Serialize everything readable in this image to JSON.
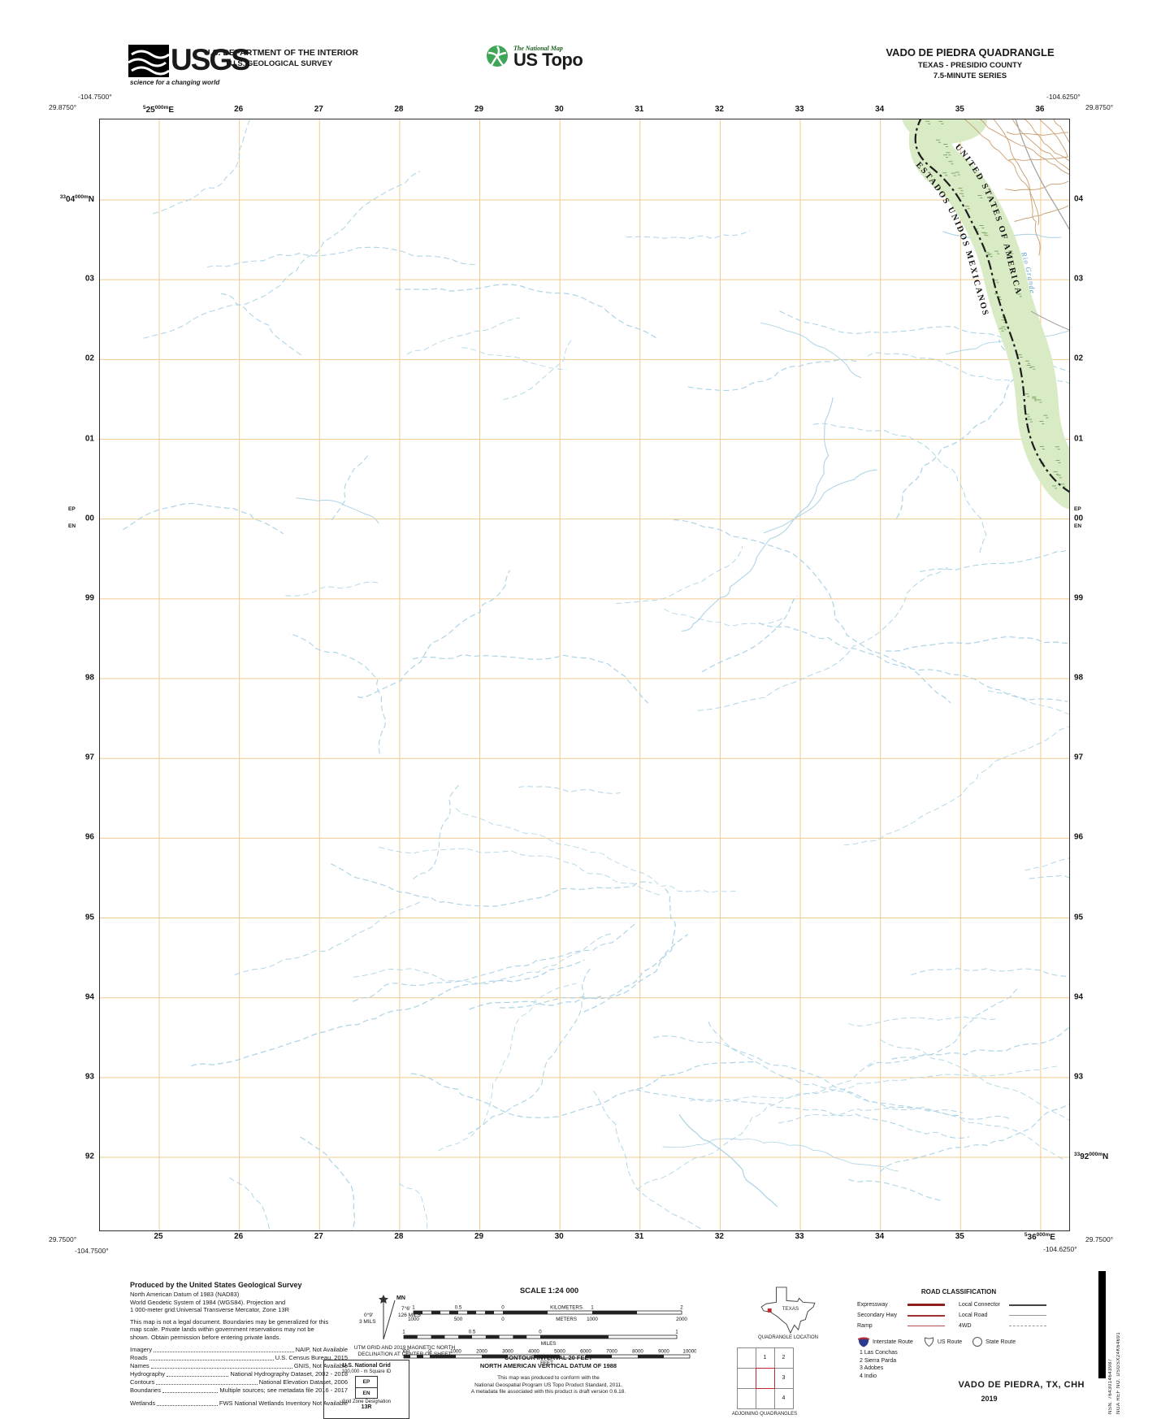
{
  "header": {
    "usgs": {
      "acronym": "USGS",
      "tagline": "science for a changing world"
    },
    "dept_line1": "U.S. DEPARTMENT OF THE INTERIOR",
    "dept_line2": "U.S. GEOLOGICAL SURVEY",
    "ustopo": {
      "brand": "The National Map",
      "product": "US Topo"
    },
    "quad": {
      "title": "VADO DE PIEDRA QUADRANGLE",
      "subtitle": "TEXAS - PRESIDIO COUNTY",
      "series": "7.5-MINUTE SERIES"
    }
  },
  "collar": {
    "corners": {
      "nw_lon": "-104.7500°",
      "nw_lat": "29.8750°",
      "ne_lon": "-104.6250°",
      "ne_lat": "29.8750°",
      "sw_lat": "29.7500°",
      "sw_lon": "-104.7500°",
      "se_lon": "-104.6250°",
      "se_lat": "29.7500°"
    },
    "grid": {
      "eastings": [
        "25",
        "26",
        "27",
        "28",
        "29",
        "30",
        "31",
        "32",
        "33",
        "34",
        "35",
        "36"
      ],
      "northings": [
        "04",
        "03",
        "02",
        "01",
        "00",
        "99",
        "98",
        "97",
        "96",
        "95",
        "94",
        "93",
        "92"
      ],
      "easting_prefix": "5",
      "northing_prefix": "33",
      "meters_suffix": "000m",
      "easting_axis": "E",
      "northing_axis": "N",
      "ep": "EP",
      "en": "EN"
    }
  },
  "map": {
    "labels": {
      "country_us": "UNITED STATES OF AMERICA",
      "country_mx": "ESTADOS UNIDOS MEXICANOS",
      "river": "Rio Grande"
    },
    "colors": {
      "grid": "#f0c98f",
      "stream": "#aed4e6",
      "vegetation": "#d8ebc4",
      "veg_marks": "#7fa968",
      "contour": "#c79e6f",
      "boundary": "#1c1c1c",
      "road": "#a5a5a5",
      "river_label": "#5b9bc8"
    }
  },
  "footer": {
    "produced": {
      "title": "Produced by the United States Geological Survey",
      "datum_lines": [
        "North American Datum of 1983 (NAD83)",
        "World Geodetic System of 1984 (WGS84).  Projection and",
        "1 000-meter grid:Universal Transverse Mercator, Zone 13R"
      ],
      "legal": "This map is not a legal document. Boundaries may be generalized for this map scale. Private lands within government reservations may not be shown. Obtain permission before entering private lands.",
      "sources": [
        {
          "label": "Imagery",
          "value": "NAIP, Not Available"
        },
        {
          "label": "Roads",
          "value": "U.S. Census Bureau, 2015"
        },
        {
          "label": "Names",
          "value": "GNIS, Not Available"
        },
        {
          "label": "Hydrography",
          "value": "National Hydrography Dataset, 2002 - 2018"
        },
        {
          "label": "Contours",
          "value": "National Elevation Dataset, 2006"
        },
        {
          "label": "Boundaries",
          "value": "Multiple sources; see metadata file 2016 - 2017"
        },
        {
          "label": "Wetlands",
          "value": "FWS National Wetlands Inventory Not Available"
        }
      ]
    },
    "declination": {
      "mn_label": "MN",
      "mn_deg": "7°6'",
      "mn_mils": "126 MILS",
      "gn_deg": "0°9'",
      "gn_mils": "3 MILS",
      "caption_line1": "UTM GRID AND 2019 MAGNETIC NORTH",
      "caption_line2": "DECLINATION AT CENTER OF SHEET"
    },
    "usng": {
      "title": "U.S. National Grid",
      "subtitle": "100,000 - m Square ID",
      "square_top": "EP",
      "square_bottom": "EN",
      "gzd_label": "Grid Zone Designation",
      "gzd_value": "13R"
    },
    "scale": {
      "title": "SCALE 1:24 000",
      "km_top": [
        "1",
        "0.5",
        "0",
        "KILOMETERS",
        "1",
        "2"
      ],
      "m_bottom": [
        "1000",
        "500",
        "0",
        "METERS",
        "1000",
        "2000"
      ],
      "mi_top": [
        "1",
        "0.5",
        "0",
        "1"
      ],
      "mi_unit": "MILES",
      "ft_top": [
        "1000",
        "0",
        "1000",
        "2000",
        "3000",
        "4000",
        "5000",
        "6000",
        "7000",
        "8000",
        "9000",
        "10000"
      ],
      "ft_unit": "FEET",
      "contour": "CONTOUR INTERVAL 20 FEET",
      "vdatum": "NORTH AMERICAN VERTICAL DATUM OF 1988",
      "notes": [
        "This map was produced to conform with the",
        "National Geospatial Program US Topo Product Standard, 2011.",
        "A metadata file associated with this product is draft version 0.6.18."
      ]
    },
    "location": {
      "state_label": "TEXAS",
      "caption": "QUADRANGLE LOCATION"
    },
    "adjoining": {
      "cells": [
        "1",
        "2",
        "3",
        "4"
      ],
      "items": [
        "1 Las Conchas",
        "2 Sierra Parda",
        "3 Adobes",
        "4 Indio"
      ],
      "caption": "ADJOINING QUADRANGLES"
    },
    "roads": {
      "title": "ROAD CLASSIFICATION",
      "left_rows": [
        {
          "label": "Expressway",
          "style": "expressway"
        },
        {
          "label": "Secondary Hwy",
          "style": "secondary"
        },
        {
          "label": "Ramp",
          "style": "ramp"
        }
      ],
      "right_rows": [
        {
          "label": "Local Connector",
          "style": "connector"
        },
        {
          "label": "Local Road",
          "style": "local"
        },
        {
          "label": "4WD",
          "style": "fourwd"
        }
      ],
      "shields": [
        {
          "label": "Interstate Route",
          "type": "interstate"
        },
        {
          "label": "US Route",
          "type": "us"
        },
        {
          "label": "State Route",
          "type": "state"
        }
      ]
    },
    "title_block": {
      "title": "VADO DE PIEDRA,  TX, CHH",
      "year": "2019"
    },
    "barcode": {
      "nsn_label": "NSN.",
      "nsn": "7643014643987",
      "ref_label": "NGA REF NO.",
      "ref": "USGSX24K64691"
    }
  }
}
